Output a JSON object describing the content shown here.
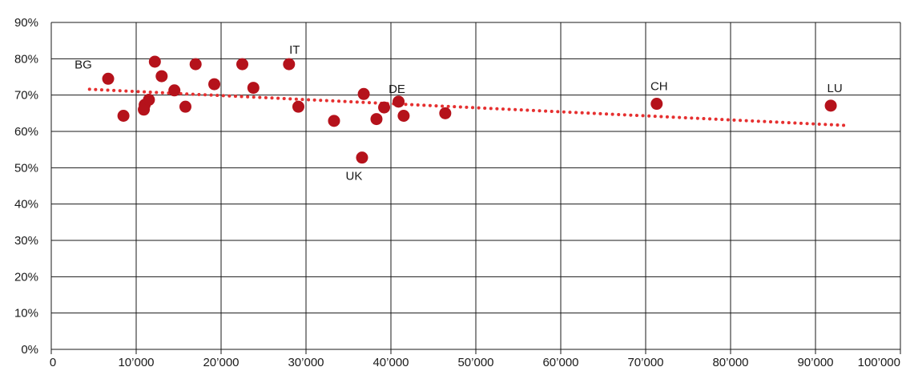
{
  "chart_data": {
    "type": "scatter",
    "title": "",
    "xlabel": "",
    "ylabel": "",
    "xlim": [
      0,
      100000
    ],
    "ylim": [
      0,
      90
    ],
    "x_ticks": [
      0,
      10000,
      20000,
      30000,
      40000,
      50000,
      60000,
      70000,
      80000,
      90000,
      100000
    ],
    "x_tick_labels": [
      "0",
      "10’000",
      "20’000",
      "30’000",
      "40’000",
      "50’000",
      "60’000",
      "70’000",
      "80’000",
      "90’000",
      "100’000"
    ],
    "y_ticks": [
      0,
      10,
      20,
      30,
      40,
      50,
      60,
      70,
      80,
      90
    ],
    "y_tick_labels": [
      "0%",
      "10%",
      "20%",
      "30%",
      "40%",
      "50%",
      "60%",
      "70%",
      "80%",
      "90%"
    ],
    "grid": true,
    "colors": {
      "points": "#b5121b",
      "trend": "#e63030",
      "grid": "#1a1a1a"
    },
    "points": [
      {
        "x": 6700,
        "y": 74.5,
        "label": "BG"
      },
      {
        "x": 8500,
        "y": 64.3,
        "label": ""
      },
      {
        "x": 10900,
        "y": 66.0,
        "label": ""
      },
      {
        "x": 11000,
        "y": 67.3,
        "label": ""
      },
      {
        "x": 11500,
        "y": 68.7,
        "label": ""
      },
      {
        "x": 12200,
        "y": 79.2,
        "label": ""
      },
      {
        "x": 13000,
        "y": 75.2,
        "label": ""
      },
      {
        "x": 14500,
        "y": 71.3,
        "label": ""
      },
      {
        "x": 15800,
        "y": 66.8,
        "label": ""
      },
      {
        "x": 17000,
        "y": 78.5,
        "label": ""
      },
      {
        "x": 19200,
        "y": 73.0,
        "label": ""
      },
      {
        "x": 22500,
        "y": 78.5,
        "label": ""
      },
      {
        "x": 23800,
        "y": 72.0,
        "label": ""
      },
      {
        "x": 28000,
        "y": 78.5,
        "label": "IT"
      },
      {
        "x": 29100,
        "y": 66.8,
        "label": ""
      },
      {
        "x": 33300,
        "y": 62.9,
        "label": ""
      },
      {
        "x": 36600,
        "y": 52.8,
        "label": "UK"
      },
      {
        "x": 36800,
        "y": 70.3,
        "label": ""
      },
      {
        "x": 38300,
        "y": 63.4,
        "label": ""
      },
      {
        "x": 39200,
        "y": 66.6,
        "label": "DE"
      },
      {
        "x": 40900,
        "y": 68.2,
        "label": ""
      },
      {
        "x": 41500,
        "y": 64.3,
        "label": ""
      },
      {
        "x": 46400,
        "y": 65.0,
        "label": ""
      },
      {
        "x": 71300,
        "y": 67.6,
        "label": "CH"
      },
      {
        "x": 91800,
        "y": 67.1,
        "label": "LU"
      }
    ],
    "trendline": {
      "style": "dotted",
      "x": [
        4500,
        94000
      ],
      "y": [
        71.6,
        61.6
      ]
    }
  }
}
